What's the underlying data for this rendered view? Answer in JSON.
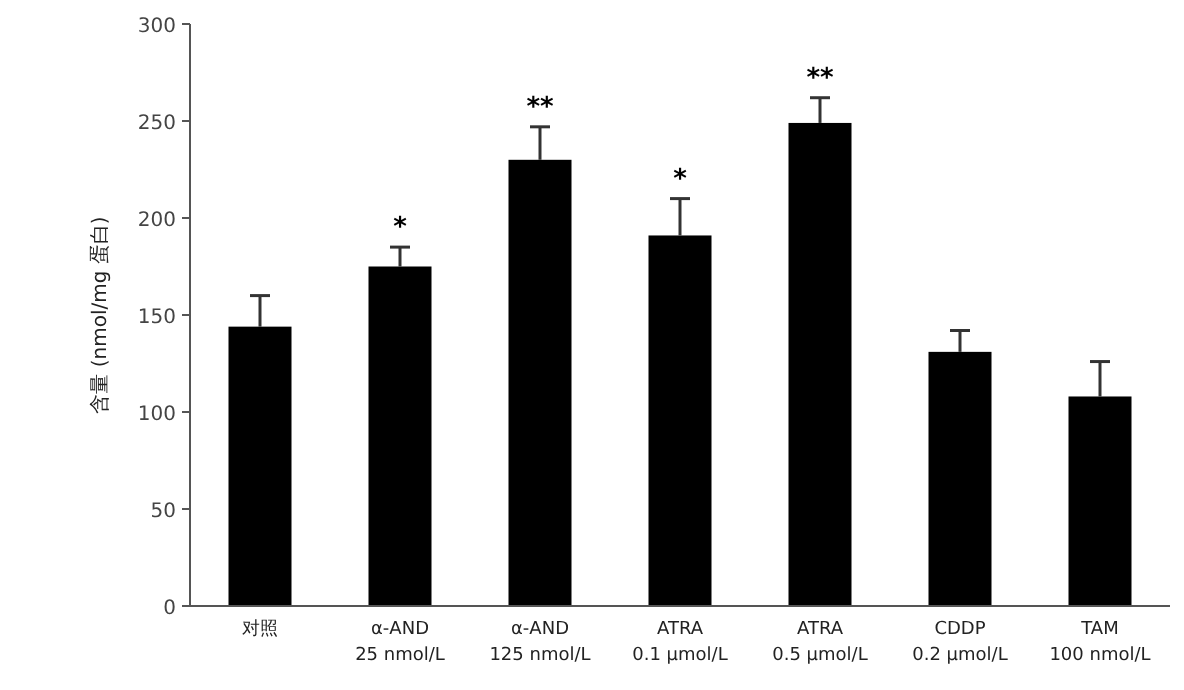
{
  "chart_data": {
    "type": "bar",
    "ylabel": "含量 (nmol/mg 蛋白)",
    "categories": [
      "对照",
      "α-AND\n25 nmol/L",
      "α-AND\n125 nmol/L",
      "ATRA\n0.1 μmol/L",
      "ATRA\n0.5 μmol/L",
      "CDDP\n0.2 μmol/L",
      "TAM\n100 nmol/L"
    ],
    "values": [
      144,
      175,
      230,
      191,
      249,
      131,
      108
    ],
    "errors": [
      16,
      10,
      17,
      19,
      13,
      11,
      18
    ],
    "color": "#000000",
    "ylim": [
      0,
      300
    ],
    "yticks": [
      0,
      50,
      100,
      150,
      200,
      250,
      300
    ],
    "grid": false,
    "annotations": [
      {
        "text": "*",
        "x": "α-AND\n25 nmol/L",
        "y": 185
      },
      {
        "text": "**",
        "x": "α-AND\n125 nmol/L",
        "y": 247
      },
      {
        "text": "*",
        "x": "ATRA\n0.1 μmol/L",
        "y": 210
      },
      {
        "text": "**",
        "x": "ATRA\n0.5 μmol/L",
        "y": 262
      }
    ]
  }
}
